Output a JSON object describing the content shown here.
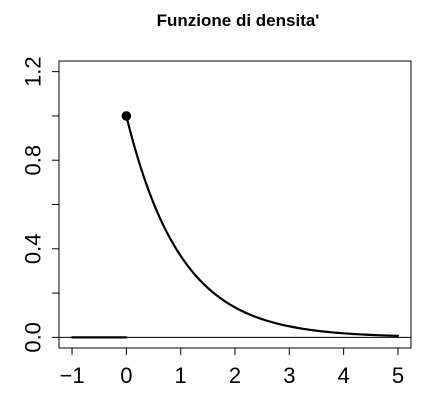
{
  "chart_data": {
    "type": "line",
    "title": "Funzione di densita'",
    "xlabel": "",
    "ylabel": "",
    "xlim": [
      -1.24,
      5.24
    ],
    "ylim": [
      -0.048,
      1.248
    ],
    "x_ticks": [
      -1,
      0,
      1,
      2,
      3,
      4,
      5
    ],
    "x_tick_labels": [
      "−1",
      "0",
      "1",
      "2",
      "3",
      "4",
      "5"
    ],
    "y_ticks": [
      0.0,
      0.4,
      0.8,
      1.2
    ],
    "y_tick_labels": [
      "0.0",
      "0.4",
      "0.8",
      "1.2"
    ],
    "grid": false,
    "reference_lines": [
      {
        "orientation": "horizontal",
        "y": 0
      }
    ],
    "series": [
      {
        "style": "line",
        "x": [
          -1,
          0
        ],
        "y": [
          0,
          0
        ]
      },
      {
        "style": "line",
        "function": "exp(-x)",
        "x": [
          0,
          0.25,
          0.5,
          0.75,
          1,
          1.5,
          2,
          2.5,
          3,
          3.5,
          4,
          4.5,
          5
        ],
        "y": [
          1,
          0.779,
          0.607,
          0.472,
          0.368,
          0.223,
          0.135,
          0.082,
          0.05,
          0.03,
          0.018,
          0.011,
          0.007
        ]
      },
      {
        "style": "point",
        "x": [
          0
        ],
        "y": [
          1
        ]
      }
    ]
  }
}
